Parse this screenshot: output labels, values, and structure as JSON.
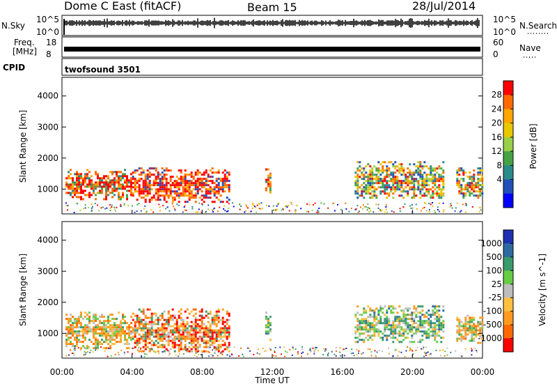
{
  "header": {
    "station": "Dome C East (fitACF)",
    "beam": "Beam 15",
    "date": "28/Jul/2014"
  },
  "status_panels": {
    "nsky_label": "N.Sky",
    "nsky_ticks": [
      "10^5",
      "10^0"
    ],
    "nsearch_label": "N.Search",
    "nsearch_ticks": [
      "10^5",
      "10^0"
    ],
    "freq_label": "Freq.",
    "freq_unit": "[MHz]",
    "freq_ticks": [
      "18",
      "8"
    ],
    "nave_label": "Nave",
    "nave_ticks": [
      "60",
      "0"
    ],
    "cpid_label": "CPID",
    "cpid_value": "twofsound 3501"
  },
  "chart_data": [
    {
      "type": "heatmap",
      "name": "power-panel",
      "ylabel": "Slant Range [km]",
      "ylim": [
        200,
        4600
      ],
      "yticks": [
        1000,
        2000,
        3000,
        4000
      ],
      "xlim_hours": [
        0,
        24
      ],
      "colorbar": {
        "label": "Power [dB]",
        "ticks": [
          "28",
          "24",
          "20",
          "16",
          "12",
          "8",
          "4"
        ],
        "colors": [
          "#ff0000",
          "#ff6a00",
          "#ffa500",
          "#e8c800",
          "#98d048",
          "#45a345",
          "#2b8a8a",
          "#2050b8",
          "#0000ff"
        ]
      },
      "regions": [
        {
          "x": [
            0.2,
            4.0
          ],
          "y": [
            700,
            1650
          ],
          "level": "high"
        },
        {
          "x": [
            4.0,
            9.5
          ],
          "y": [
            600,
            1700
          ],
          "level": "very-high"
        },
        {
          "x": [
            11.6,
            11.9
          ],
          "y": [
            900,
            1800
          ],
          "level": "high"
        },
        {
          "x": [
            16.7,
            21.8
          ],
          "y": [
            700,
            1900
          ],
          "level": "mixed"
        },
        {
          "x": [
            22.5,
            24.0
          ],
          "y": [
            700,
            1700
          ],
          "level": "mixed"
        }
      ]
    },
    {
      "type": "heatmap",
      "name": "velocity-panel",
      "ylabel": "Slant Range [km]",
      "ylim": [
        200,
        4600
      ],
      "yticks": [
        1000,
        2000,
        3000,
        4000
      ],
      "xlim_hours": [
        0,
        24
      ],
      "xticks": [
        "00:00",
        "04:00",
        "08:00",
        "12:00",
        "16:00",
        "20:00",
        "00:00"
      ],
      "xlabel": "Time UT",
      "colorbar": {
        "label": "Velocity [m s^-1]",
        "ticks": [
          "1000",
          "500",
          "100",
          "25",
          "-25",
          "-100",
          "-500",
          "-1000"
        ],
        "colors": [
          "#2030b0",
          "#2e6aa0",
          "#3a9a6a",
          "#66cc44",
          "#bdbdbd",
          "#ffc040",
          "#ff9a20",
          "#ff6a00",
          "#ff0000"
        ]
      },
      "regions": [
        {
          "x": [
            0.2,
            4.0
          ],
          "y": [
            500,
            1700
          ],
          "level": "toward"
        },
        {
          "x": [
            4.0,
            9.5
          ],
          "y": [
            400,
            1800
          ],
          "level": "toward-strong"
        },
        {
          "x": [
            11.6,
            11.9
          ],
          "y": [
            800,
            1700
          ],
          "level": "away"
        },
        {
          "x": [
            16.7,
            21.8
          ],
          "y": [
            700,
            1900
          ],
          "level": "away"
        },
        {
          "x": [
            22.5,
            24.0
          ],
          "y": [
            700,
            1600
          ],
          "level": "toward"
        }
      ]
    }
  ]
}
